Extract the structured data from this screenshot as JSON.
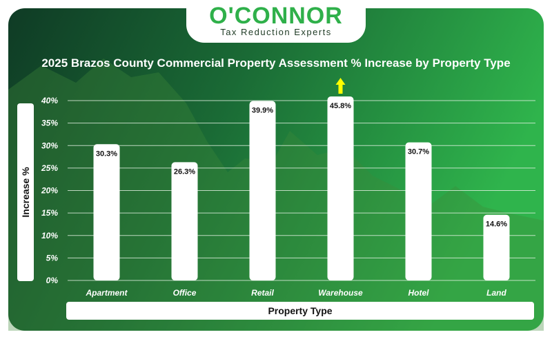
{
  "logo": {
    "name": "O'CONNOR",
    "tagline": "Tax Reduction Experts"
  },
  "colors": {
    "background_dark": "#0f3b25",
    "background_light": "#2fb44c",
    "bar": "#ffffff",
    "grid": "#e6f3e6",
    "arrow": "#ffff00",
    "brand_green": "#2fb04a"
  },
  "chart_data": {
    "type": "bar",
    "title": "2025 Brazos County Commercial Property Assessment % Increase by Property Type",
    "xlabel": "Property Type",
    "ylabel": "Increase %",
    "categories": [
      "Apartment",
      "Office",
      "Retail",
      "Warehouse",
      "Hotel",
      "Land"
    ],
    "values": [
      30.3,
      26.3,
      39.9,
      45.8,
      30.7,
      14.6
    ],
    "value_labels": [
      "30.3%",
      "26.3%",
      "39.9%",
      "45.8%",
      "30.7%",
      "14.6%"
    ],
    "y_ticks": [
      0,
      5,
      10,
      15,
      20,
      25,
      30,
      35,
      40
    ],
    "y_tick_labels": [
      "0%",
      "5%",
      "10%",
      "15%",
      "20%",
      "25%",
      "30%",
      "35%",
      "40%"
    ],
    "ylim": [
      0,
      40
    ],
    "grid": true,
    "highlight": {
      "category": "Warehouse",
      "marker": "up-arrow"
    }
  }
}
